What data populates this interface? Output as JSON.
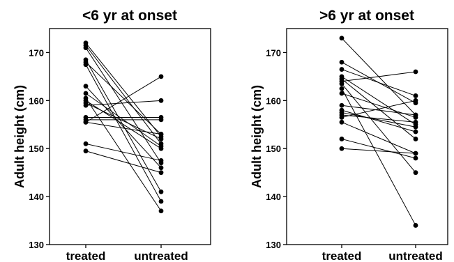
{
  "chart_data": [
    {
      "type": "scatter",
      "title": "<6 yr at onset",
      "ylabel": "Adult height (cm)",
      "xlabel": "",
      "categories": [
        "treated",
        "untreated"
      ],
      "ylim": [
        130,
        175
      ],
      "yticks": [
        130,
        140,
        150,
        160,
        170
      ],
      "grid": false,
      "pairs": [
        [
          172.0,
          152.5
        ],
        [
          171.5,
          151.0
        ],
        [
          171.0,
          147.0
        ],
        [
          168.5,
          141.0
        ],
        [
          168.0,
          153.0
        ],
        [
          167.5,
          139.0
        ],
        [
          163.0,
          146.0
        ],
        [
          161.5,
          150.5
        ],
        [
          160.5,
          137.0
        ],
        [
          160.0,
          150.0
        ],
        [
          159.5,
          152.0
        ],
        [
          159.0,
          160.0
        ],
        [
          156.5,
          156.5
        ],
        [
          156.0,
          156.0
        ],
        [
          155.5,
          165.0
        ],
        [
          155.5,
          153.0
        ],
        [
          151.0,
          147.5
        ],
        [
          149.5,
          145.0
        ]
      ]
    },
    {
      "type": "scatter",
      "title": ">6 yr at onset",
      "ylabel": "Adult height (cm)",
      "xlabel": "",
      "categories": [
        "treated",
        "untreated"
      ],
      "ylim": [
        130,
        175
      ],
      "yticks": [
        130,
        140,
        150,
        160,
        170
      ],
      "grid": false,
      "pairs": [
        [
          173.0,
          157.0
        ],
        [
          168.0,
          159.5
        ],
        [
          166.5,
          161.0
        ],
        [
          165.0,
          155.0
        ],
        [
          164.5,
          152.0
        ],
        [
          164.0,
          166.0
        ],
        [
          163.5,
          145.0
        ],
        [
          162.5,
          134.0
        ],
        [
          161.5,
          156.5
        ],
        [
          159.0,
          157.0
        ],
        [
          158.0,
          153.5
        ],
        [
          157.5,
          154.5
        ],
        [
          157.0,
          155.5
        ],
        [
          156.5,
          160.0
        ],
        [
          155.5,
          149.0
        ],
        [
          152.0,
          148.0
        ],
        [
          150.0,
          149.0
        ]
      ]
    }
  ]
}
